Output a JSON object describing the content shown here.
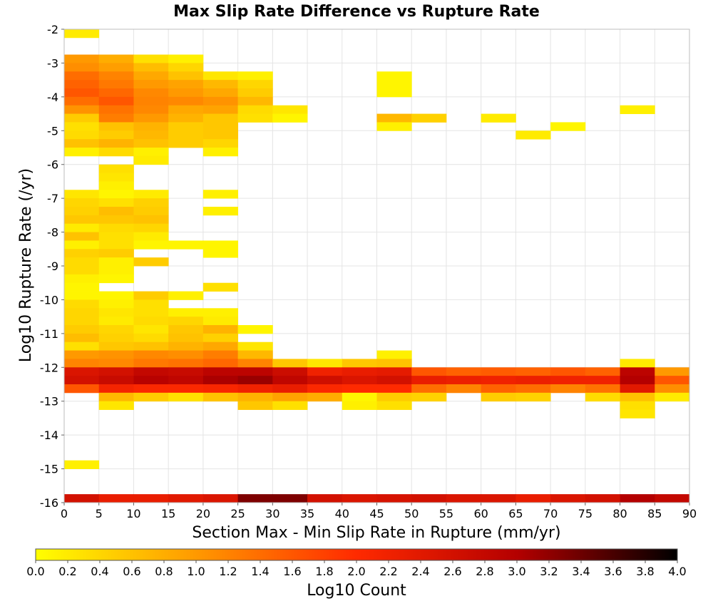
{
  "chart_data": {
    "type": "heatmap",
    "title": "Max Slip Rate Difference vs Rupture Rate",
    "xlabel": "Section Max - Min Slip Rate in Rupture (mm/yr)",
    "ylabel": "Log10 Rupture Rate (/yr)",
    "xlim": [
      0,
      90
    ],
    "ylim": [
      -16,
      -2
    ],
    "x_bin_width": 5,
    "y_bin_height": 0.25,
    "x_ticks": [
      "0",
      "5",
      "10",
      "15",
      "20",
      "25",
      "30",
      "35",
      "40",
      "45",
      "50",
      "55",
      "60",
      "65",
      "70",
      "75",
      "80",
      "85",
      "90"
    ],
    "y_ticks": [
      "-2",
      "-3",
      "-4",
      "-5",
      "-6",
      "-7",
      "-8",
      "-9",
      "-10",
      "-11",
      "-12",
      "-13",
      "-14",
      "-15",
      "-16"
    ],
    "grid": true,
    "colorbar": {
      "label": "Log10 Count",
      "range": [
        0.0,
        4.0
      ],
      "ticks": [
        "0.0",
        "0.2",
        "0.4",
        "0.6",
        "0.8",
        "1.0",
        "1.2",
        "1.4",
        "1.6",
        "1.8",
        "2.0",
        "2.2",
        "2.4",
        "2.6",
        "2.8",
        "3.0",
        "3.2",
        "3.4",
        "3.6",
        "3.8",
        "4.0"
      ],
      "placement": "bottom",
      "colors": [
        "#ffff00",
        "#ff9900",
        "#ff2a00",
        "#b40000",
        "#000000"
      ]
    },
    "cells_format": "[x_bin_start, y_bin_top, log10_count]",
    "cells": [
      [
        0,
        -2.0,
        0.2
      ],
      [
        0,
        -2.75,
        1.0
      ],
      [
        5,
        -2.75,
        0.8
      ],
      [
        10,
        -2.75,
        0.3
      ],
      [
        15,
        -2.75,
        0.15
      ],
      [
        0,
        -3.0,
        1.1
      ],
      [
        5,
        -3.0,
        0.95
      ],
      [
        10,
        -3.0,
        0.65
      ],
      [
        15,
        -3.0,
        0.4
      ],
      [
        0,
        -3.25,
        1.4
      ],
      [
        5,
        -3.25,
        1.2
      ],
      [
        10,
        -3.25,
        0.85
      ],
      [
        15,
        -3.25,
        0.6
      ],
      [
        20,
        -3.25,
        0.25
      ],
      [
        25,
        -3.25,
        0.15
      ],
      [
        0,
        -3.5,
        1.5
      ],
      [
        5,
        -3.5,
        1.3
      ],
      [
        10,
        -3.5,
        1.0
      ],
      [
        15,
        -3.5,
        0.9
      ],
      [
        20,
        -3.5,
        0.7
      ],
      [
        25,
        -3.5,
        0.4
      ],
      [
        45,
        -3.25,
        0.1
      ],
      [
        45,
        -3.5,
        0.1
      ],
      [
        0,
        -3.75,
        1.6
      ],
      [
        5,
        -3.75,
        1.45
      ],
      [
        10,
        -3.75,
        1.15
      ],
      [
        15,
        -3.75,
        1.0
      ],
      [
        20,
        -3.75,
        0.85
      ],
      [
        25,
        -3.75,
        0.5
      ],
      [
        45,
        -3.75,
        0.1
      ],
      [
        0,
        -4.0,
        1.4
      ],
      [
        5,
        -4.0,
        1.6
      ],
      [
        10,
        -4.0,
        1.2
      ],
      [
        15,
        -4.0,
        1.15
      ],
      [
        20,
        -4.0,
        1.05
      ],
      [
        25,
        -4.0,
        0.7
      ],
      [
        0,
        -4.25,
        1.05
      ],
      [
        5,
        -4.25,
        1.35
      ],
      [
        10,
        -4.25,
        1.15
      ],
      [
        15,
        -4.25,
        0.85
      ],
      [
        20,
        -4.25,
        0.9
      ],
      [
        25,
        -4.25,
        0.35
      ],
      [
        30,
        -4.25,
        0.25
      ],
      [
        80,
        -4.25,
        0.15
      ],
      [
        0,
        -4.5,
        0.5
      ],
      [
        5,
        -4.5,
        1.25
      ],
      [
        10,
        -4.5,
        1.0
      ],
      [
        15,
        -4.5,
        0.75
      ],
      [
        20,
        -4.5,
        0.55
      ],
      [
        25,
        -4.5,
        0.3
      ],
      [
        30,
        -4.5,
        0.1
      ],
      [
        45,
        -4.5,
        0.7
      ],
      [
        50,
        -4.5,
        0.45
      ],
      [
        60,
        -4.5,
        0.2
      ],
      [
        0,
        -4.75,
        0.3
      ],
      [
        5,
        -4.75,
        0.6
      ],
      [
        10,
        -4.75,
        0.75
      ],
      [
        15,
        -4.75,
        0.5
      ],
      [
        20,
        -4.75,
        0.55
      ],
      [
        45,
        -4.75,
        0.15
      ],
      [
        70,
        -4.75,
        0.1
      ],
      [
        0,
        -5.0,
        0.35
      ],
      [
        5,
        -5.0,
        0.5
      ],
      [
        10,
        -5.0,
        0.7
      ],
      [
        15,
        -5.0,
        0.5
      ],
      [
        20,
        -5.0,
        0.55
      ],
      [
        65,
        -5.0,
        0.2
      ],
      [
        0,
        -5.25,
        0.6
      ],
      [
        5,
        -5.25,
        0.75
      ],
      [
        10,
        -5.25,
        0.6
      ],
      [
        15,
        -5.25,
        0.5
      ],
      [
        20,
        -5.25,
        0.4
      ],
      [
        0,
        -5.5,
        0.15
      ],
      [
        5,
        -5.5,
        0.35
      ],
      [
        10,
        -5.5,
        0.15
      ],
      [
        20,
        -5.5,
        0.15
      ],
      [
        10,
        -5.75,
        0.2
      ],
      [
        5,
        -6.0,
        0.3
      ],
      [
        5,
        -6.25,
        0.25
      ],
      [
        5,
        -6.5,
        0.15
      ],
      [
        0,
        -6.75,
        0.25
      ],
      [
        5,
        -6.75,
        0.1
      ],
      [
        10,
        -6.75,
        0.2
      ],
      [
        20,
        -6.75,
        0.15
      ],
      [
        0,
        -7.0,
        0.4
      ],
      [
        5,
        -7.0,
        0.3
      ],
      [
        10,
        -7.0,
        0.45
      ],
      [
        0,
        -7.25,
        0.45
      ],
      [
        5,
        -7.25,
        0.65
      ],
      [
        10,
        -7.25,
        0.5
      ],
      [
        20,
        -7.25,
        0.15
      ],
      [
        0,
        -7.5,
        0.55
      ],
      [
        5,
        -7.5,
        0.55
      ],
      [
        10,
        -7.5,
        0.6
      ],
      [
        0,
        -7.75,
        0.2
      ],
      [
        5,
        -7.75,
        0.35
      ],
      [
        10,
        -7.75,
        0.4
      ],
      [
        0,
        -8.0,
        0.6
      ],
      [
        5,
        -8.0,
        0.3
      ],
      [
        10,
        -8.0,
        0.2
      ],
      [
        0,
        -8.25,
        0.15
      ],
      [
        5,
        -8.25,
        0.3
      ],
      [
        10,
        -8.25,
        0.1
      ],
      [
        15,
        -8.25,
        0.1
      ],
      [
        20,
        -8.25,
        0.1
      ],
      [
        0,
        -8.5,
        0.45
      ],
      [
        5,
        -8.5,
        0.5
      ],
      [
        20,
        -8.5,
        0.1
      ],
      [
        0,
        -8.75,
        0.35
      ],
      [
        5,
        -8.75,
        0.15
      ],
      [
        10,
        -8.75,
        0.5
      ],
      [
        0,
        -9.0,
        0.35
      ],
      [
        5,
        -9.0,
        0.15
      ],
      [
        0,
        -9.25,
        0.15
      ],
      [
        5,
        -9.25,
        0.1
      ],
      [
        0,
        -9.5,
        0.1
      ],
      [
        20,
        -9.5,
        0.3
      ],
      [
        0,
        -9.75,
        0.1
      ],
      [
        5,
        -9.75,
        0.1
      ],
      [
        10,
        -9.75,
        0.5
      ],
      [
        15,
        -9.75,
        0.15
      ],
      [
        0,
        -10.0,
        0.35
      ],
      [
        5,
        -10.0,
        0.15
      ],
      [
        10,
        -10.0,
        0.3
      ],
      [
        0,
        -10.25,
        0.4
      ],
      [
        5,
        -10.25,
        0.25
      ],
      [
        10,
        -10.25,
        0.3
      ],
      [
        15,
        -10.25,
        0.15
      ],
      [
        20,
        -10.25,
        0.15
      ],
      [
        0,
        -10.5,
        0.4
      ],
      [
        5,
        -10.5,
        0.2
      ],
      [
        10,
        -10.5,
        0.35
      ],
      [
        15,
        -10.5,
        0.4
      ],
      [
        20,
        -10.5,
        0.2
      ],
      [
        0,
        -10.75,
        0.5
      ],
      [
        5,
        -10.75,
        0.4
      ],
      [
        10,
        -10.75,
        0.25
      ],
      [
        15,
        -10.75,
        0.55
      ],
      [
        20,
        -10.75,
        0.75
      ],
      [
        25,
        -10.75,
        0.1
      ],
      [
        0,
        -11.0,
        0.65
      ],
      [
        5,
        -11.0,
        0.45
      ],
      [
        10,
        -11.0,
        0.35
      ],
      [
        15,
        -11.0,
        0.6
      ],
      [
        20,
        -11.0,
        0.45
      ],
      [
        0,
        -11.25,
        0.3
      ],
      [
        5,
        -11.25,
        0.55
      ],
      [
        10,
        -11.25,
        0.6
      ],
      [
        15,
        -11.25,
        0.75
      ],
      [
        20,
        -11.25,
        0.85
      ],
      [
        25,
        -11.25,
        0.25
      ],
      [
        0,
        -11.5,
        1.0
      ],
      [
        5,
        -11.5,
        1.05
      ],
      [
        10,
        -11.5,
        1.15
      ],
      [
        15,
        -11.5,
        1.1
      ],
      [
        20,
        -11.5,
        1.25
      ],
      [
        25,
        -11.5,
        0.7
      ],
      [
        45,
        -11.5,
        0.15
      ],
      [
        0,
        -11.75,
        1.2
      ],
      [
        5,
        -11.75,
        1.15
      ],
      [
        10,
        -11.75,
        1.3
      ],
      [
        15,
        -11.75,
        1.35
      ],
      [
        20,
        -11.75,
        1.45
      ],
      [
        25,
        -11.75,
        1.2
      ],
      [
        30,
        -11.75,
        0.55
      ],
      [
        35,
        -11.75,
        0.25
      ],
      [
        40,
        -11.75,
        0.55
      ],
      [
        45,
        -11.75,
        0.6
      ],
      [
        80,
        -11.75,
        0.2
      ],
      [
        0,
        -12.0,
        2.5
      ],
      [
        5,
        -12.0,
        2.6
      ],
      [
        10,
        -12.0,
        2.8
      ],
      [
        15,
        -12.0,
        2.75
      ],
      [
        20,
        -12.0,
        2.9
      ],
      [
        25,
        -12.0,
        2.9
      ],
      [
        30,
        -12.0,
        2.7
      ],
      [
        35,
        -12.0,
        2.2
      ],
      [
        40,
        -12.0,
        2.3
      ],
      [
        45,
        -12.0,
        2.35
      ],
      [
        50,
        -12.0,
        1.6
      ],
      [
        55,
        -12.0,
        1.5
      ],
      [
        60,
        -12.0,
        1.55
      ],
      [
        65,
        -12.0,
        1.5
      ],
      [
        70,
        -12.0,
        1.6
      ],
      [
        75,
        -12.0,
        1.5
      ],
      [
        80,
        -12.0,
        2.9
      ],
      [
        85,
        -12.0,
        1.0
      ],
      [
        0,
        -12.25,
        2.6
      ],
      [
        5,
        -12.25,
        2.75
      ],
      [
        10,
        -12.25,
        2.95
      ],
      [
        15,
        -12.25,
        2.85
      ],
      [
        20,
        -12.25,
        3.05
      ],
      [
        25,
        -12.25,
        3.15
      ],
      [
        30,
        -12.25,
        2.85
      ],
      [
        35,
        -12.25,
        2.65
      ],
      [
        40,
        -12.25,
        2.5
      ],
      [
        45,
        -12.25,
        2.6
      ],
      [
        50,
        -12.25,
        2.3
      ],
      [
        55,
        -12.25,
        2.25
      ],
      [
        60,
        -12.25,
        2.2
      ],
      [
        65,
        -12.25,
        2.25
      ],
      [
        70,
        -12.25,
        2.2
      ],
      [
        75,
        -12.25,
        2.2
      ],
      [
        80,
        -12.25,
        3.0
      ],
      [
        85,
        -12.25,
        1.6
      ],
      [
        0,
        -12.5,
        1.6
      ],
      [
        5,
        -12.5,
        2.15
      ],
      [
        10,
        -12.5,
        2.05
      ],
      [
        15,
        -12.5,
        2.05
      ],
      [
        20,
        -12.5,
        2.1
      ],
      [
        25,
        -12.5,
        2.2
      ],
      [
        30,
        -12.5,
        2.3
      ],
      [
        35,
        -12.5,
        2.05
      ],
      [
        40,
        -12.5,
        2.0
      ],
      [
        45,
        -12.5,
        2.0
      ],
      [
        50,
        -12.5,
        1.4
      ],
      [
        55,
        -12.5,
        1.2
      ],
      [
        60,
        -12.5,
        1.5
      ],
      [
        65,
        -12.5,
        1.4
      ],
      [
        70,
        -12.5,
        1.2
      ],
      [
        75,
        -12.5,
        1.35
      ],
      [
        80,
        -12.5,
        2.4
      ],
      [
        85,
        -12.5,
        1.1
      ],
      [
        5,
        -12.75,
        0.7
      ],
      [
        10,
        -12.75,
        0.5
      ],
      [
        15,
        -12.75,
        0.3
      ],
      [
        20,
        -12.75,
        0.6
      ],
      [
        25,
        -12.75,
        0.75
      ],
      [
        30,
        -12.75,
        0.9
      ],
      [
        35,
        -12.75,
        0.8
      ],
      [
        40,
        -12.75,
        0.1
      ],
      [
        45,
        -12.75,
        0.5
      ],
      [
        50,
        -12.75,
        0.45
      ],
      [
        60,
        -12.75,
        0.5
      ],
      [
        65,
        -12.75,
        0.45
      ],
      [
        75,
        -12.75,
        0.35
      ],
      [
        80,
        -12.75,
        0.6
      ],
      [
        85,
        -12.75,
        0.2
      ],
      [
        5,
        -13.0,
        0.25
      ],
      [
        25,
        -13.0,
        0.55
      ],
      [
        30,
        -13.0,
        0.3
      ],
      [
        40,
        -13.0,
        0.15
      ],
      [
        45,
        -13.0,
        0.3
      ],
      [
        80,
        -13.0,
        0.3
      ],
      [
        80,
        -13.25,
        0.25
      ],
      [
        0,
        -14.75,
        0.15
      ],
      [
        0,
        -15.75,
        2.6
      ],
      [
        5,
        -15.75,
        2.3
      ],
      [
        10,
        -15.75,
        2.3
      ],
      [
        15,
        -15.75,
        2.4
      ],
      [
        20,
        -15.75,
        2.5
      ],
      [
        25,
        -15.75,
        3.3
      ],
      [
        30,
        -15.75,
        3.3
      ],
      [
        35,
        -15.75,
        2.6
      ],
      [
        40,
        -15.75,
        2.5
      ],
      [
        45,
        -15.75,
        2.55
      ],
      [
        50,
        -15.75,
        2.6
      ],
      [
        55,
        -15.75,
        2.5
      ],
      [
        60,
        -15.75,
        2.5
      ],
      [
        65,
        -15.75,
        2.3
      ],
      [
        70,
        -15.75,
        2.5
      ],
      [
        75,
        -15.75,
        2.6
      ],
      [
        80,
        -15.75,
        3.0
      ],
      [
        85,
        -15.75,
        2.8
      ]
    ]
  }
}
